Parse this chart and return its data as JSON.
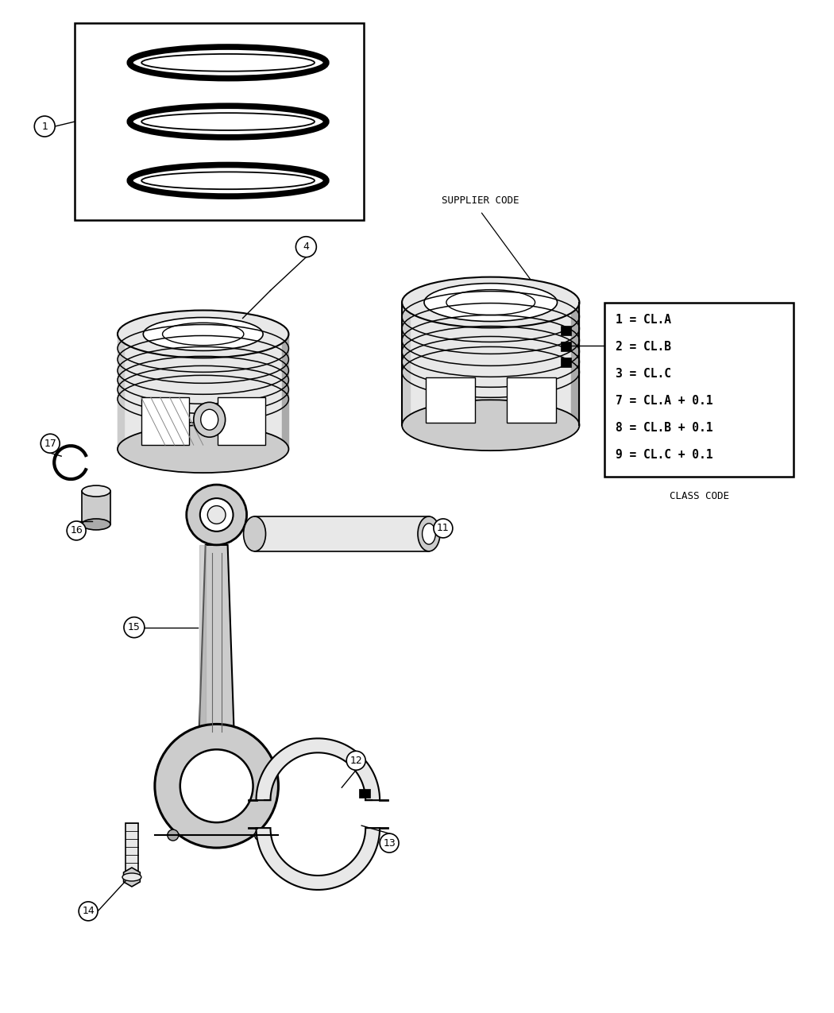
{
  "bg_color": "#ffffff",
  "supplier_code_label": "SUPPLIER CODE",
  "class_code_label": "CLASS CODE",
  "class_code_lines": [
    "1 = CL.A",
    "2 = CL.B",
    "3 = CL.C",
    "7 = CL.A + 0.1",
    "8 = CL.B + 0.1",
    "9 = CL.C + 0.1"
  ],
  "line_color": "#000000",
  "fill_light": "#e8e8e8",
  "fill_mid": "#cccccc",
  "fill_dark": "#aaaaaa",
  "fill_white": "#ffffff"
}
